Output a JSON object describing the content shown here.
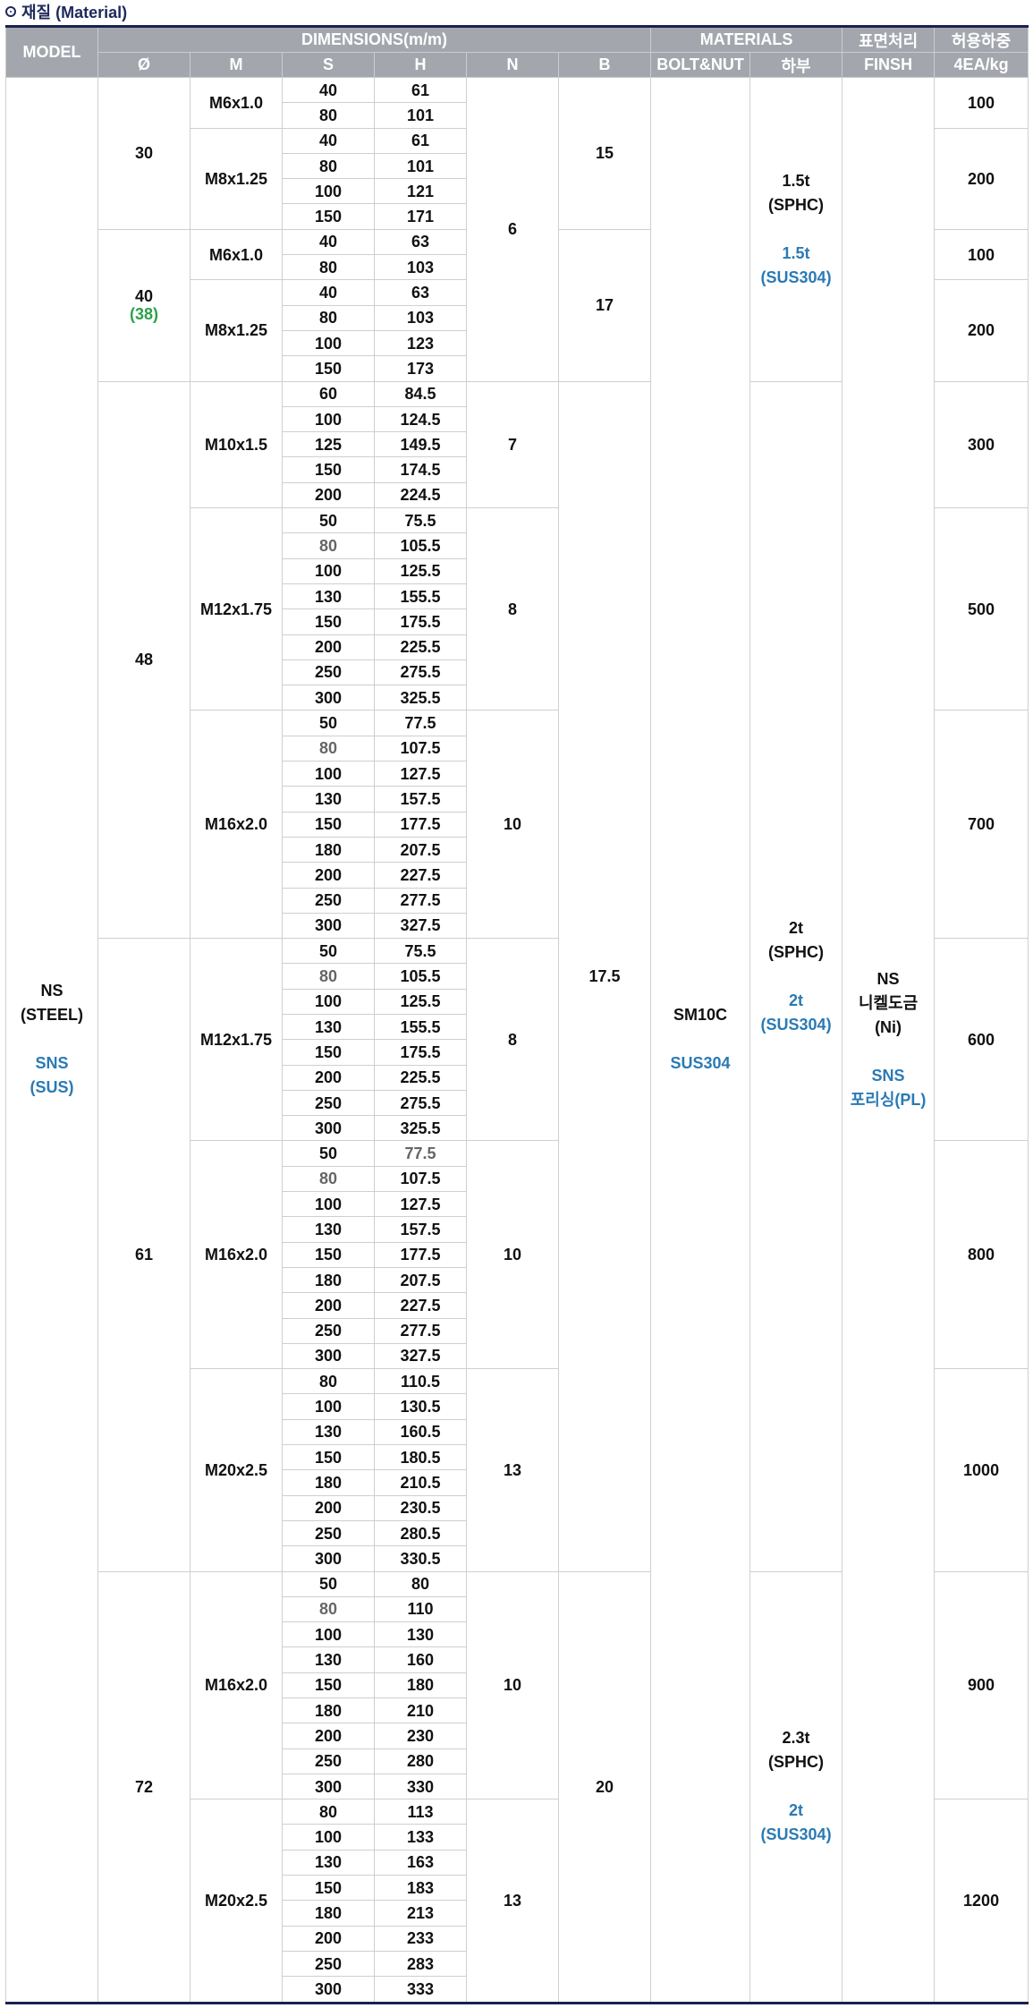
{
  "title": {
    "icon": "circle-dot-icon",
    "text": "재질 (Material)"
  },
  "colors": {
    "header_bg": "#a3a7ad",
    "header_text": "#ffffff",
    "border_dark": "#1a2150",
    "accent_blue": "#2a7ab5",
    "accent_green": "#2aa14a",
    "muted_grey": "#666666"
  },
  "header": {
    "model": "MODEL",
    "dimensions": "DIMENSIONS(m/m)",
    "materials": "MATERIALS",
    "surface": "표면처리",
    "load": "허용하중",
    "dia": "Ø",
    "m": "M",
    "s": "S",
    "h": "H",
    "n": "N",
    "b": "B",
    "bolt_nut": "BOLT&NUT",
    "lower": "하부",
    "finish": "FINSH",
    "load_unit": "4EA/kg"
  },
  "model": {
    "line1": "NS",
    "line2": "(STEEL)",
    "line3": "SNS",
    "line4": "(SUS)"
  },
  "bolt_nut": {
    "line1": "SM10C",
    "line2": "SUS304"
  },
  "finish": {
    "line1": "NS",
    "line2": "니켈도금",
    "line3": "(Ni)",
    "line4": "SNS",
    "line5": "포리싱(PL)"
  },
  "lower": [
    {
      "line1": "1.5t",
      "line2": "(SPHC)",
      "line3": "1.5t",
      "line4": "(SUS304)"
    },
    {
      "line1": "2t",
      "line2": "(SPHC)",
      "line3": "2t",
      "line4": "(SUS304)"
    },
    {
      "line1": "2.3t",
      "line2": "(SPHC)",
      "line3": "2t",
      "line4": "(SUS304)"
    }
  ],
  "n_values": [
    "6",
    "7",
    "8",
    "10",
    "8",
    "10",
    "13",
    "10",
    "13"
  ],
  "b_values": [
    "15",
    "17",
    "17.5",
    "20"
  ],
  "diameters": [
    {
      "value": "30"
    },
    {
      "value": "40",
      "alt": "(38)"
    },
    {
      "value": "48"
    },
    {
      "value": "61"
    },
    {
      "value": "72"
    }
  ],
  "groups": [
    {
      "m": "M6x1.0",
      "load": "100",
      "rows": [
        [
          "40",
          "61"
        ],
        [
          "80",
          "101"
        ]
      ]
    },
    {
      "m": "M8x1.25",
      "load": "200",
      "rows": [
        [
          "40",
          "61"
        ],
        [
          "80",
          "101"
        ],
        [
          "100",
          "121"
        ],
        [
          "150",
          "171"
        ]
      ]
    },
    {
      "m": "M6x1.0",
      "load": "100",
      "rows": [
        [
          "40",
          "63"
        ],
        [
          "80",
          "103"
        ]
      ]
    },
    {
      "m": "M8x1.25",
      "load": "200",
      "rows": [
        [
          "40",
          "63"
        ],
        [
          "80",
          "103"
        ],
        [
          "100",
          "123"
        ],
        [
          "150",
          "173"
        ]
      ]
    },
    {
      "m": "M10x1.5",
      "load": "300",
      "rows": [
        [
          "60",
          "84.5"
        ],
        [
          "100",
          "124.5"
        ],
        [
          "125",
          "149.5"
        ],
        [
          "150",
          "174.5"
        ],
        [
          "200",
          "224.5"
        ]
      ]
    },
    {
      "m": "M12x1.75",
      "load": "500",
      "rows": [
        [
          "50",
          "75.5"
        ],
        [
          "80",
          "105.5"
        ],
        [
          "100",
          "125.5"
        ],
        [
          "130",
          "155.5"
        ],
        [
          "150",
          "175.5"
        ],
        [
          "200",
          "225.5"
        ],
        [
          "250",
          "275.5"
        ],
        [
          "300",
          "325.5"
        ]
      ]
    },
    {
      "m": "M16x2.0",
      "load": "700",
      "rows": [
        [
          "50",
          "77.5"
        ],
        [
          "80",
          "107.5"
        ],
        [
          "100",
          "127.5"
        ],
        [
          "130",
          "157.5"
        ],
        [
          "150",
          "177.5"
        ],
        [
          "180",
          "207.5"
        ],
        [
          "200",
          "227.5"
        ],
        [
          "250",
          "277.5"
        ],
        [
          "300",
          "327.5"
        ]
      ]
    },
    {
      "m": "M12x1.75",
      "load": "600",
      "rows": [
        [
          "50",
          "75.5"
        ],
        [
          "80",
          "105.5"
        ],
        [
          "100",
          "125.5"
        ],
        [
          "130",
          "155.5"
        ],
        [
          "150",
          "175.5"
        ],
        [
          "200",
          "225.5"
        ],
        [
          "250",
          "275.5"
        ],
        [
          "300",
          "325.5"
        ]
      ]
    },
    {
      "m": "M16x2.0",
      "load": "800",
      "rows": [
        [
          "50",
          "77.5"
        ],
        [
          "80",
          "107.5"
        ],
        [
          "100",
          "127.5"
        ],
        [
          "130",
          "157.5"
        ],
        [
          "150",
          "177.5"
        ],
        [
          "180",
          "207.5"
        ],
        [
          "200",
          "227.5"
        ],
        [
          "250",
          "277.5"
        ],
        [
          "300",
          "327.5"
        ]
      ]
    },
    {
      "m": "M20x2.5",
      "load": "1000",
      "rows": [
        [
          "80",
          "110.5"
        ],
        [
          "100",
          "130.5"
        ],
        [
          "130",
          "160.5"
        ],
        [
          "150",
          "180.5"
        ],
        [
          "180",
          "210.5"
        ],
        [
          "200",
          "230.5"
        ],
        [
          "250",
          "280.5"
        ],
        [
          "300",
          "330.5"
        ]
      ]
    },
    {
      "m": "M16x2.0",
      "load": "900",
      "rows": [
        [
          "50",
          "80"
        ],
        [
          "80",
          "110"
        ],
        [
          "100",
          "130"
        ],
        [
          "130",
          "160"
        ],
        [
          "150",
          "180"
        ],
        [
          "180",
          "210"
        ],
        [
          "200",
          "230"
        ],
        [
          "250",
          "280"
        ],
        [
          "300",
          "330"
        ]
      ]
    },
    {
      "m": "M20x2.5",
      "load": "1200",
      "rows": [
        [
          "80",
          "113"
        ],
        [
          "100",
          "133"
        ],
        [
          "130",
          "163"
        ],
        [
          "150",
          "183"
        ],
        [
          "180",
          "213"
        ],
        [
          "200",
          "233"
        ],
        [
          "250",
          "283"
        ],
        [
          "300",
          "333"
        ]
      ]
    }
  ]
}
